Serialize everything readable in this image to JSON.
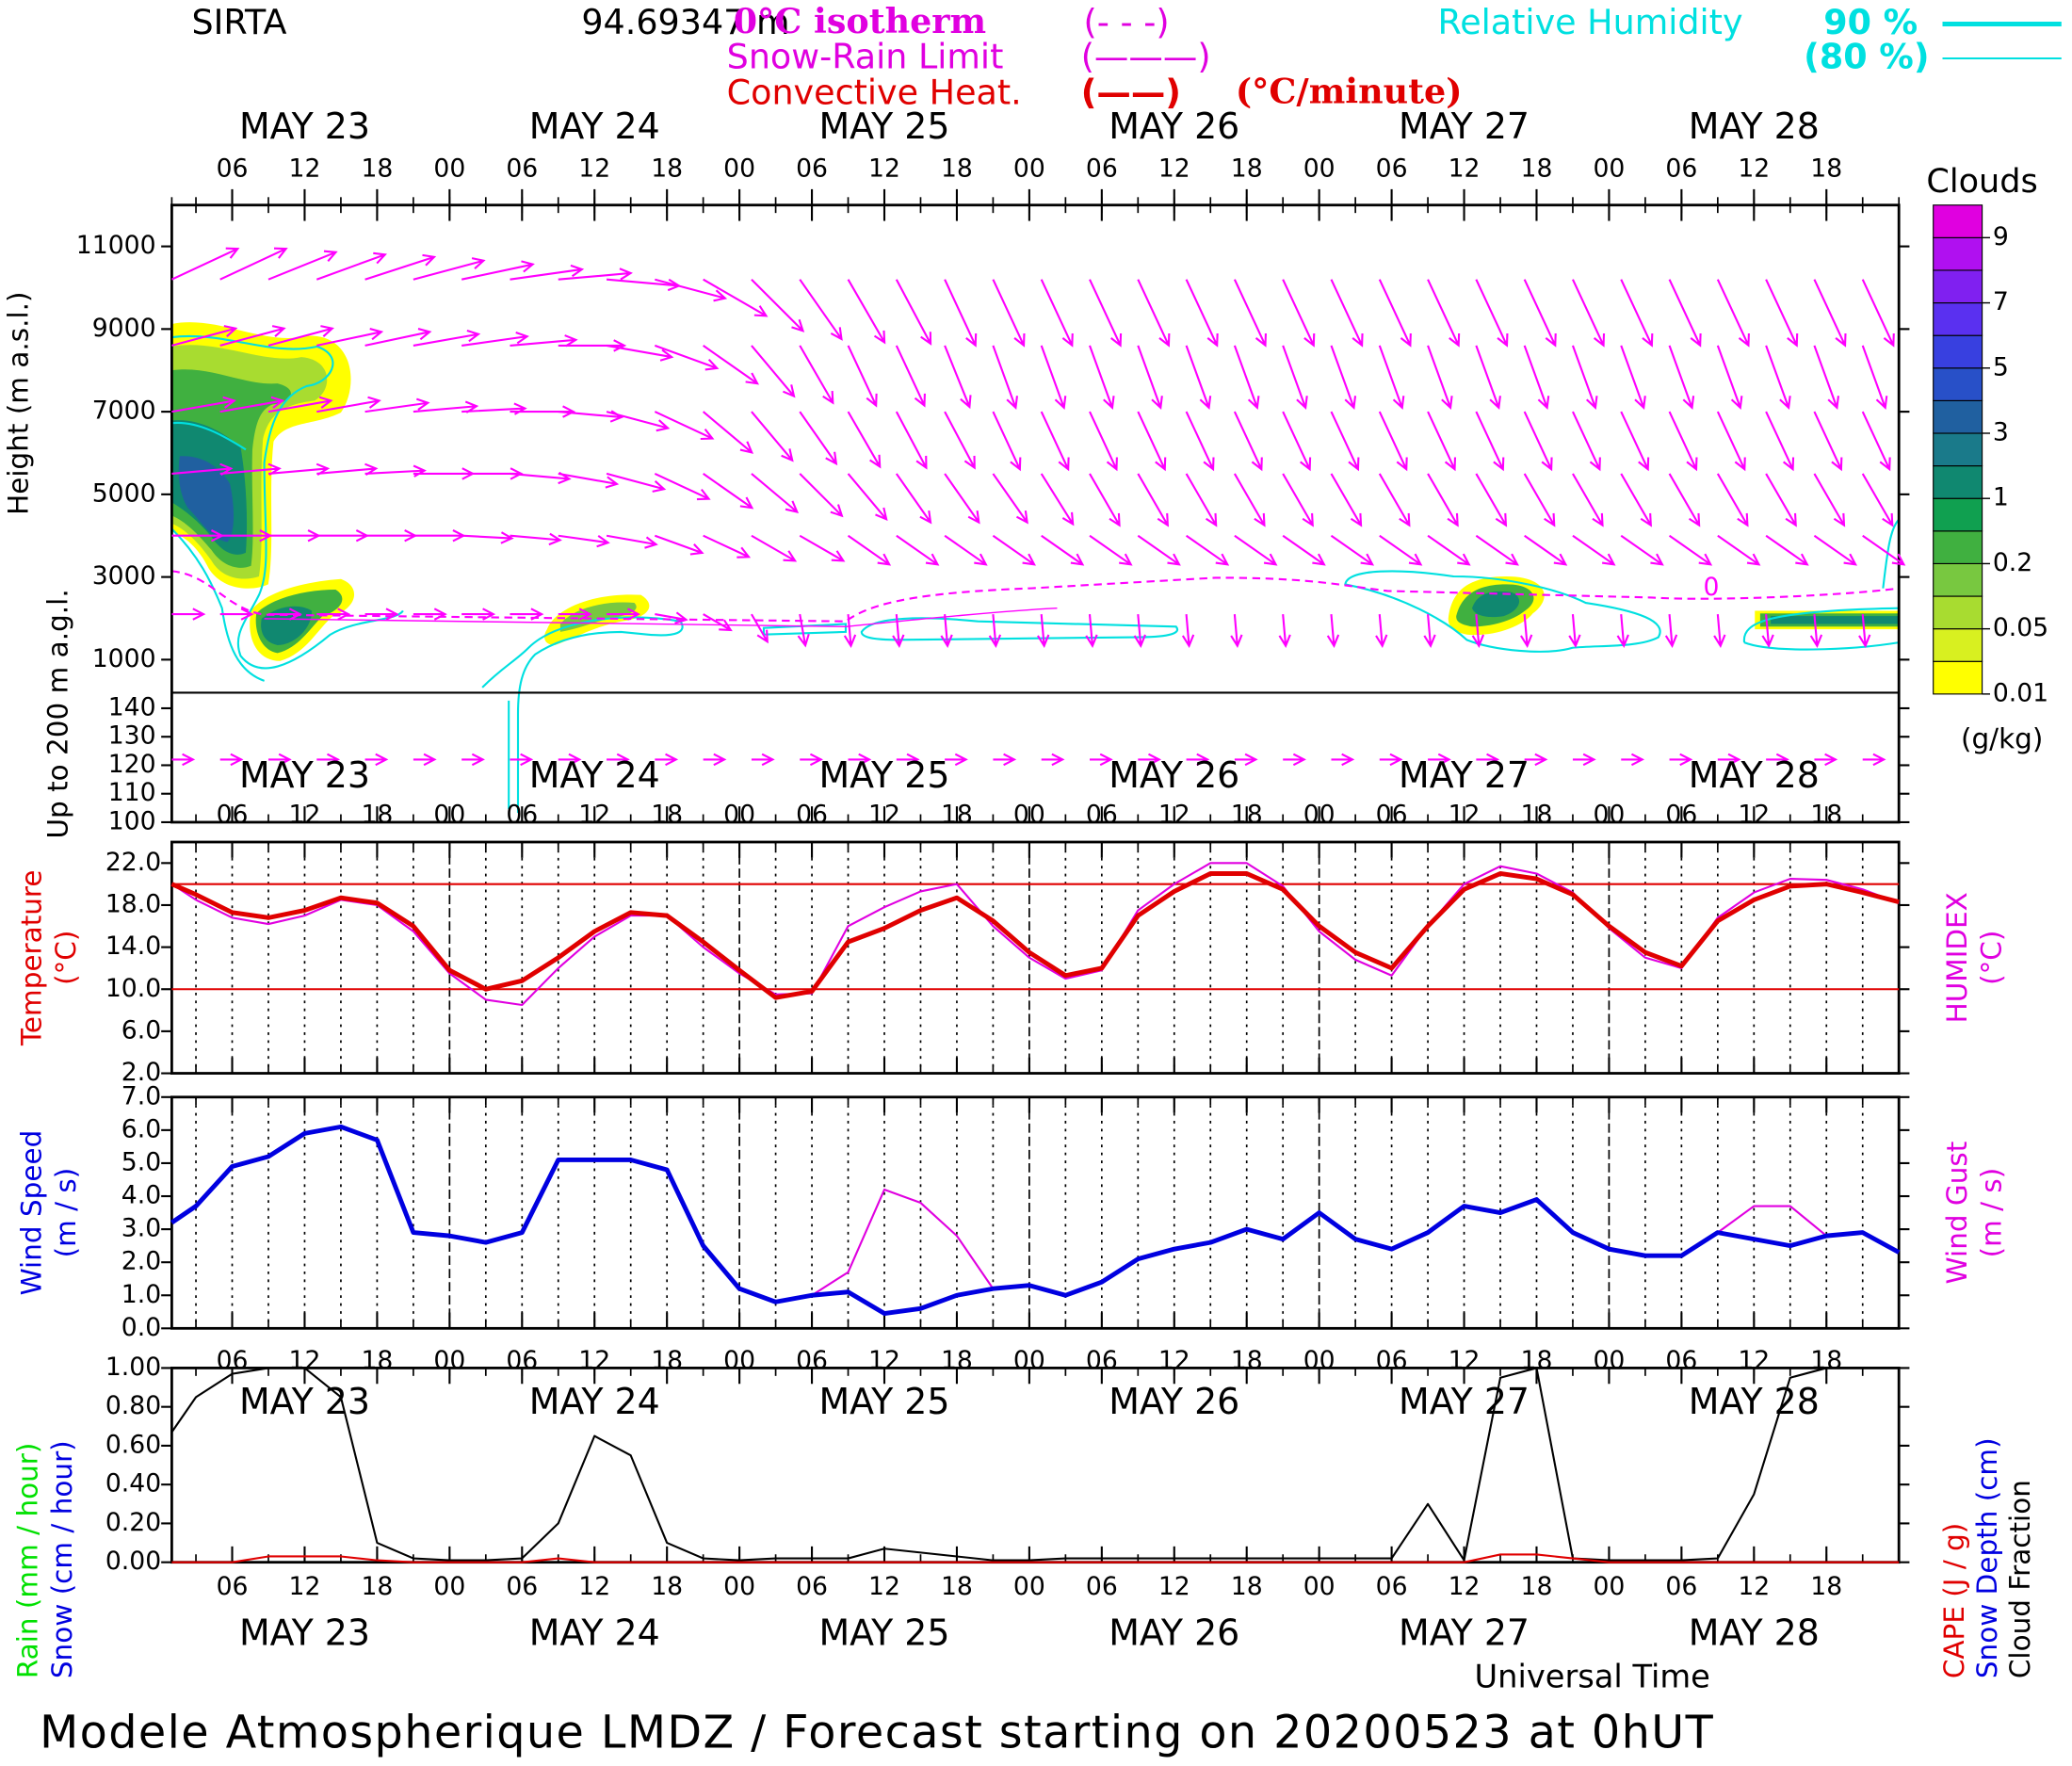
{
  "header": {
    "station": "SIRTA",
    "altitude": "94.69347 m",
    "isotherm": "0°C isotherm",
    "isotherm_key": "(- - -)",
    "snow_limit": "Snow-Rain Limit",
    "snow_limit_key": "(———)",
    "convective": "Convective Heat.",
    "convective_key": "(——)",
    "convective_unit": "(°C/minute)",
    "humidity": "Relative Humidity",
    "humidity_90": "90 %",
    "humidity_80": "(80 %)"
  },
  "footer": "Modele Atmospherique LMDZ / Forecast starting on 20200523 at 0hUT",
  "time": {
    "xlim": [
      1,
      144
    ],
    "x": [
      1,
      3,
      6,
      9,
      12,
      15,
      18,
      21,
      24,
      27,
      30,
      33,
      36,
      39,
      42,
      45,
      48,
      51,
      54,
      57,
      60,
      63,
      66,
      69,
      72,
      75,
      78,
      81,
      84,
      87,
      90,
      93,
      96,
      99,
      102,
      105,
      108,
      111,
      114,
      117,
      120,
      123,
      126,
      129,
      132,
      135,
      138,
      141,
      144
    ],
    "xticks": [
      {
        "value": 6,
        "label": "06"
      },
      {
        "value": 12,
        "label": "12"
      },
      {
        "value": 18,
        "label": "18"
      },
      {
        "value": 24,
        "label": "00"
      },
      {
        "value": 30,
        "label": "06"
      },
      {
        "value": 36,
        "label": "12"
      },
      {
        "value": 42,
        "label": "18"
      },
      {
        "value": 48,
        "label": "00"
      },
      {
        "value": 54,
        "label": "06"
      },
      {
        "value": 60,
        "label": "12"
      },
      {
        "value": 66,
        "label": "18"
      },
      {
        "value": 72,
        "label": "00"
      },
      {
        "value": 78,
        "label": "06"
      },
      {
        "value": 84,
        "label": "12"
      },
      {
        "value": 90,
        "label": "18"
      },
      {
        "value": 96,
        "label": "00"
      },
      {
        "value": 102,
        "label": "06"
      },
      {
        "value": 108,
        "label": "12"
      },
      {
        "value": 114,
        "label": "18"
      },
      {
        "value": 120,
        "label": "00"
      },
      {
        "value": 126,
        "label": "06"
      },
      {
        "value": 132,
        "label": "12"
      },
      {
        "value": 138,
        "label": "18"
      }
    ],
    "day_labels": [
      {
        "value": 12,
        "label": "MAY 23"
      },
      {
        "value": 36,
        "label": "MAY 24"
      },
      {
        "value": 60,
        "label": "MAY 25"
      },
      {
        "value": 84,
        "label": "MAY 26"
      },
      {
        "value": 108,
        "label": "MAY 27"
      },
      {
        "value": 132,
        "label": "MAY 28"
      }
    ],
    "xlabel": "Universal Time"
  },
  "chart_data": [
    {
      "type": "contour",
      "ylabel": "Height (m a.s.l.)",
      "ylabel_agl": "Up to 200 m a.g.l.",
      "ylim": [
        200,
        12000
      ],
      "yticks": [
        1000,
        3000,
        5000,
        7000,
        9000,
        11000
      ],
      "ylim_agl": [
        100,
        145
      ],
      "yticks_agl": [
        100,
        110,
        120,
        130,
        140
      ],
      "isotherm_label": 0,
      "arrow_color": "#ff00ff",
      "wind_arrows": {
        "x": [
          1,
          5,
          9,
          13,
          17,
          21,
          25,
          29,
          33,
          37,
          41,
          45,
          49,
          53,
          57,
          61,
          65,
          69,
          73,
          77,
          81,
          85,
          89,
          93,
          97,
          101,
          105,
          109,
          113,
          117,
          121,
          125,
          129,
          133,
          137,
          141
        ],
        "levels": [
          10200,
          8600,
          7000,
          5500,
          4000,
          2100
        ],
        "angle": [
          [
            -25,
            -25,
            -22,
            -20,
            -18,
            -15,
            -12,
            -8,
            -5,
            5,
            15,
            30,
            45,
            55,
            60,
            62,
            65,
            65,
            65,
            65,
            65,
            65,
            65,
            65,
            65,
            65,
            65,
            65,
            65,
            65,
            65,
            65,
            65,
            65,
            65,
            65
          ],
          [
            -15,
            -15,
            -15,
            -12,
            -12,
            -10,
            -8,
            -5,
            0,
            10,
            20,
            35,
            50,
            60,
            65,
            65,
            68,
            70,
            70,
            70,
            70,
            70,
            70,
            70,
            70,
            70,
            70,
            70,
            70,
            70,
            70,
            70,
            70,
            70,
            70,
            70
          ],
          [
            -10,
            -10,
            -10,
            -10,
            -8,
            -5,
            -3,
            0,
            5,
            15,
            25,
            40,
            50,
            55,
            60,
            62,
            62,
            65,
            65,
            65,
            65,
            65,
            65,
            65,
            65,
            65,
            65,
            65,
            65,
            65,
            65,
            65,
            65,
            65,
            65,
            65
          ],
          [
            -5,
            -5,
            -5,
            -5,
            -3,
            0,
            0,
            5,
            10,
            15,
            25,
            35,
            40,
            45,
            50,
            55,
            55,
            55,
            58,
            60,
            60,
            60,
            60,
            60,
            60,
            60,
            60,
            60,
            60,
            60,
            60,
            60,
            60,
            60,
            60,
            60
          ],
          [
            0,
            0,
            0,
            0,
            0,
            0,
            3,
            5,
            8,
            10,
            20,
            25,
            30,
            30,
            35,
            35,
            35,
            35,
            35,
            35,
            35,
            35,
            35,
            35,
            35,
            35,
            35,
            35,
            35,
            35,
            35,
            35,
            35,
            35,
            35,
            35
          ],
          [
            0,
            0,
            0,
            0,
            0,
            0,
            0,
            0,
            0,
            0,
            10,
            30,
            60,
            80,
            85,
            85,
            85,
            85,
            85,
            85,
            85,
            85,
            85,
            85,
            85,
            85,
            85,
            85,
            85,
            85,
            85,
            85,
            85,
            85,
            85,
            85
          ]
        ]
      },
      "agl_arrows": {
        "level": 122,
        "angle": [
          0,
          0,
          0,
          0,
          0,
          0,
          0,
          0,
          0,
          0,
          0,
          0,
          0,
          0,
          0,
          0,
          0,
          0,
          0,
          0,
          0,
          0,
          0,
          0,
          0,
          0,
          0,
          0,
          0,
          0,
          0,
          0,
          0,
          0,
          0,
          0
        ]
      },
      "colorbar": {
        "title": "Clouds",
        "unit": "(g/kg)",
        "colors": [
          "#ffff00",
          "#d8f020",
          "#a8dc30",
          "#78c840",
          "#40b040",
          "#10a050",
          "#108870",
          "#1a7a8a",
          "#2060a0",
          "#2850c8",
          "#3840e0",
          "#5a30f0",
          "#8020f0",
          "#b010f0",
          "#e000e0"
        ],
        "ticks": [
          0.01,
          0.05,
          0.2,
          1,
          3,
          5,
          7,
          9
        ]
      }
    },
    {
      "type": "line",
      "grid": true,
      "ylim": [
        2,
        24
      ],
      "yticks": [
        {
          "value": 2,
          "label": "2.0"
        },
        {
          "value": 6,
          "label": "6.0"
        },
        {
          "value": 10,
          "label": "10.0"
        },
        {
          "value": 14,
          "label": "14.0"
        },
        {
          "value": 18,
          "label": "18.0"
        },
        {
          "value": 22,
          "label": "22.0"
        }
      ],
      "reference_lines": [
        20,
        10
      ],
      "reference_color": "#e00000",
      "series": [
        {
          "name": "HUMIDEX",
          "unit": "(°C)",
          "side": "right",
          "color": "#e000e0",
          "linewidth": 1.5,
          "values": [
            20.0,
            18.5,
            16.8,
            16.2,
            17.0,
            18.5,
            18.0,
            15.5,
            11.5,
            9.0,
            8.5,
            12.0,
            15.0,
            17.0,
            17.0,
            14.0,
            11.5,
            9.5,
            9.6,
            16.0,
            17.8,
            19.3,
            20.0,
            16.0,
            13.0,
            11.0,
            11.8,
            17.5,
            20.0,
            22.0,
            22.0,
            19.8,
            15.5,
            12.8,
            11.3,
            16.0,
            20.0,
            21.7,
            21.0,
            19.2,
            15.8,
            13.0,
            12.0,
            16.8,
            19.2,
            20.5,
            20.4,
            19.5,
            18.2
          ]
        },
        {
          "name": "Temperature",
          "unit": "(°C)",
          "side": "left",
          "color": "#e00000",
          "linewidth": 3.5,
          "values": [
            20.0,
            19.0,
            17.3,
            16.8,
            17.5,
            18.7,
            18.2,
            16.0,
            11.8,
            10.0,
            10.8,
            13.0,
            15.5,
            17.3,
            17.0,
            14.5,
            11.8,
            9.2,
            9.8,
            14.5,
            15.8,
            17.5,
            18.7,
            16.5,
            13.5,
            11.3,
            12.0,
            17.0,
            19.3,
            21.0,
            21.0,
            19.5,
            16.0,
            13.5,
            12.0,
            16.0,
            19.5,
            21.0,
            20.5,
            19.0,
            16.0,
            13.5,
            12.2,
            16.5,
            18.5,
            19.8,
            20.0,
            19.2,
            18.3
          ]
        }
      ]
    },
    {
      "type": "line",
      "grid": true,
      "ylim": [
        0,
        7
      ],
      "yticks": [
        {
          "value": 0,
          "label": "0.0"
        },
        {
          "value": 1,
          "label": "1.0"
        },
        {
          "value": 2,
          "label": "2.0"
        },
        {
          "value": 3,
          "label": "3.0"
        },
        {
          "value": 4,
          "label": "4.0"
        },
        {
          "value": 5,
          "label": "5.0"
        },
        {
          "value": 6,
          "label": "6.0"
        },
        {
          "value": 7,
          "label": "7.0"
        }
      ],
      "series": [
        {
          "name": "Wind Gust",
          "unit": "(m / s)",
          "side": "right",
          "color": "#e000e0",
          "linewidth": 1.5,
          "values": [
            3.2,
            3.7,
            4.9,
            5.2,
            5.9,
            6.1,
            5.7,
            2.9,
            2.8,
            2.6,
            2.9,
            5.1,
            5.1,
            5.1,
            4.8,
            2.5,
            1.2,
            0.8,
            1.0,
            1.7,
            4.2,
            3.8,
            2.8,
            1.2,
            1.3,
            1.0,
            1.4,
            2.1,
            2.4,
            2.6,
            3.0,
            2.7,
            3.5,
            2.7,
            2.4,
            2.9,
            3.7,
            3.5,
            3.9,
            2.9,
            2.4,
            2.2,
            2.2,
            2.9,
            3.7,
            3.7,
            2.8,
            2.9,
            2.3
          ]
        },
        {
          "name": "Wind Speed",
          "unit": "(m / s)",
          "side": "left",
          "color": "#0000e0",
          "linewidth": 3.5,
          "values": [
            3.2,
            3.7,
            4.9,
            5.2,
            5.9,
            6.1,
            5.7,
            2.9,
            2.8,
            2.6,
            2.9,
            5.1,
            5.1,
            5.1,
            4.8,
            2.5,
            1.2,
            0.8,
            1.0,
            1.1,
            0.45,
            0.6,
            1.0,
            1.2,
            1.3,
            1.0,
            1.4,
            2.1,
            2.4,
            2.6,
            3.0,
            2.7,
            3.5,
            2.7,
            2.4,
            2.9,
            3.7,
            3.5,
            3.9,
            2.9,
            2.4,
            2.2,
            2.2,
            2.9,
            2.7,
            2.5,
            2.8,
            2.9,
            2.3
          ]
        }
      ]
    },
    {
      "type": "line",
      "grid": false,
      "ylim": [
        0,
        1
      ],
      "yticks": [
        {
          "value": 0,
          "label": "0.00"
        },
        {
          "value": 0.2,
          "label": "0.20"
        },
        {
          "value": 0.4,
          "label": "0.40"
        },
        {
          "value": 0.6,
          "label": "0.60"
        },
        {
          "value": 0.8,
          "label": "0.80"
        },
        {
          "value": 1,
          "label": "1.00"
        }
      ],
      "series": [
        {
          "name": "Cloud Fraction",
          "color": "#000000",
          "linewidth": 1.5,
          "values": [
            0.67,
            0.85,
            0.97,
            1,
            1,
            0.85,
            0.1,
            0.02,
            0.01,
            0.01,
            0.02,
            0.2,
            0.65,
            0.55,
            0.1,
            0.02,
            0.01,
            0.02,
            0.02,
            0.02,
            0.07,
            0.05,
            0.03,
            0.01,
            0.01,
            0.02,
            0.02,
            0.02,
            0.02,
            0.02,
            0.02,
            0.02,
            0.02,
            0.02,
            0.02,
            0.3,
            0.01,
            0.95,
            1,
            0.02,
            0.01,
            0.01,
            0.01,
            0.02,
            0.35,
            0.95,
            1,
            1,
            1
          ]
        },
        {
          "name": "CAPE (J / g)",
          "color": "#e00000",
          "linewidth": 1.5,
          "values": [
            0,
            0,
            0,
            0.03,
            0.03,
            0.03,
            0.01,
            0,
            0,
            0,
            0,
            0.02,
            0,
            0,
            0,
            0,
            0,
            0,
            0,
            0,
            0,
            0,
            0,
            0,
            0,
            0,
            0,
            0,
            0,
            0,
            0,
            0,
            0,
            0,
            0,
            0,
            0,
            0.04,
            0.04,
            0.02,
            0,
            0,
            0,
            0,
            0,
            0,
            0,
            0,
            0
          ]
        }
      ],
      "other_labels": [
        {
          "name": "Rain (mm / hour)",
          "color": "#00e000"
        },
        {
          "name": "Snow (cm / hour)",
          "color": "#0000e0"
        },
        {
          "name": "Snow Depth (cm)",
          "color": "#0000e0"
        }
      ]
    }
  ]
}
